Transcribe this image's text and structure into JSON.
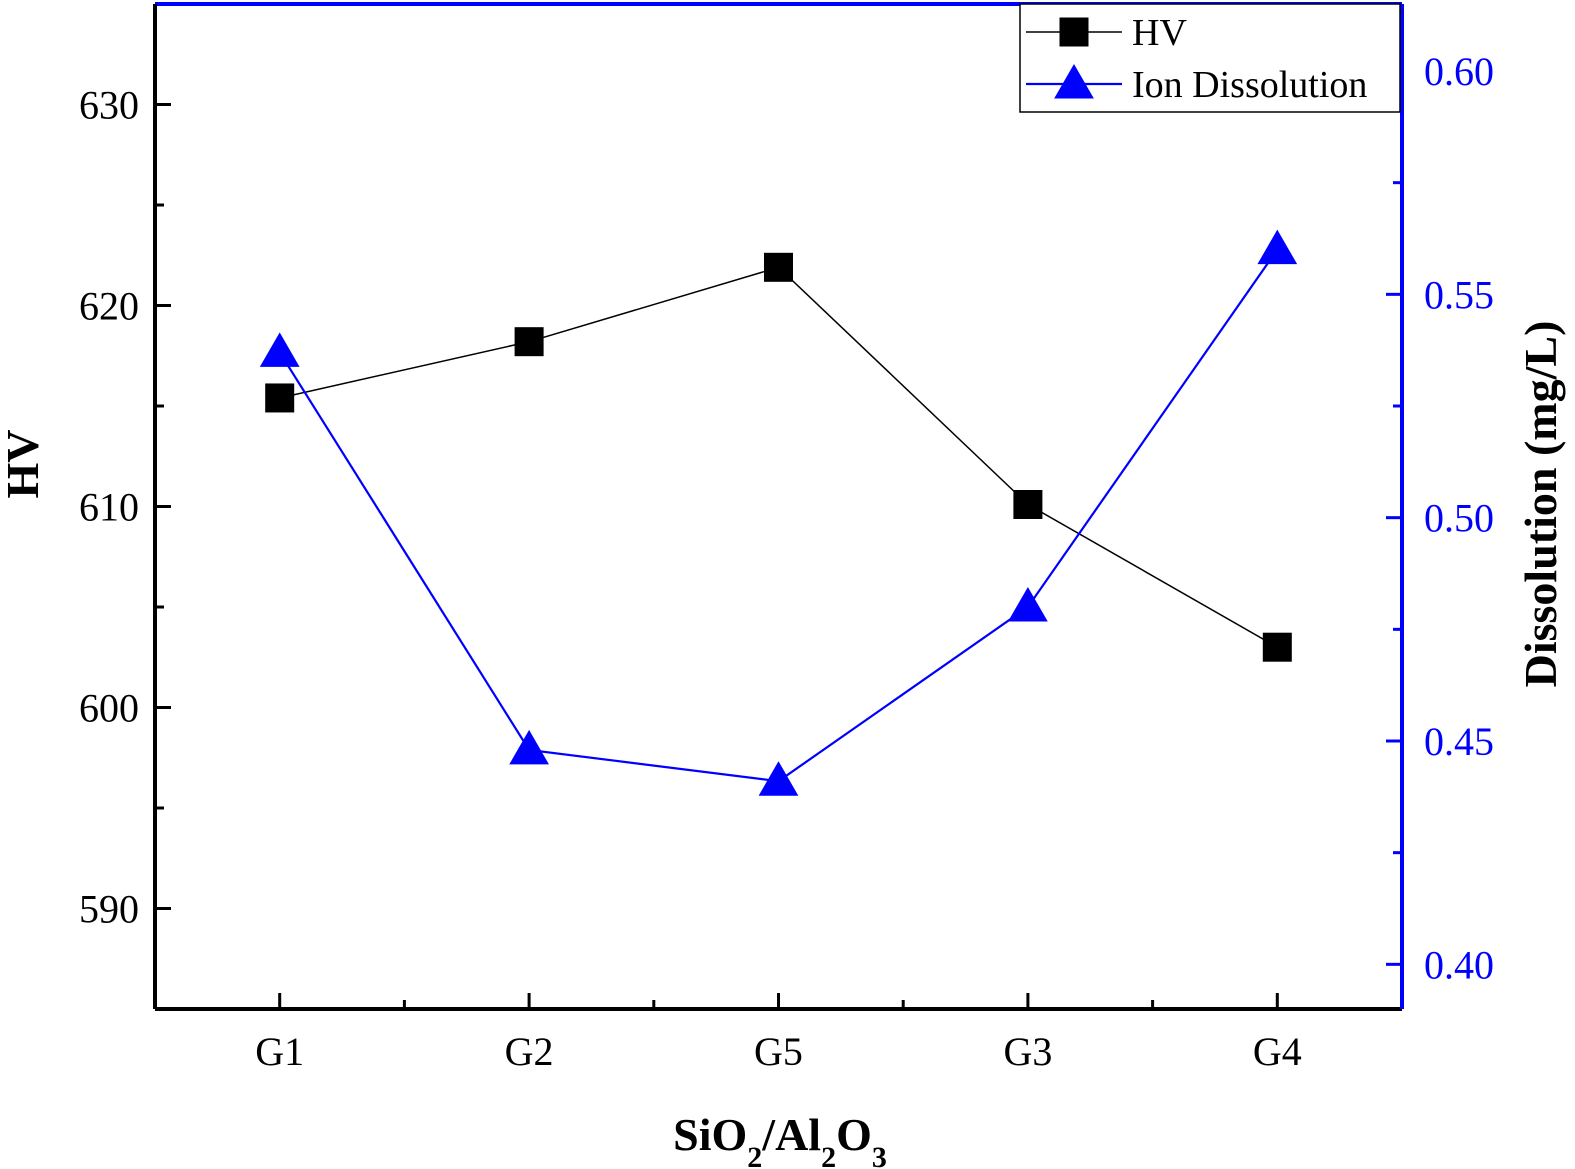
{
  "chart_data": {
    "type": "line",
    "categories": [
      "G1",
      "G2",
      "G5",
      "G3",
      "G4"
    ],
    "xlabel": "SiO2/Al2O3",
    "xlabel_parts": [
      {
        "text": "SiO",
        "sub": false
      },
      {
        "text": "2",
        "sub": true
      },
      {
        "text": "/Al",
        "sub": false
      },
      {
        "text": "2",
        "sub": true
      },
      {
        "text": "O",
        "sub": false
      },
      {
        "text": "3",
        "sub": true
      }
    ],
    "y_left": {
      "label": "HV",
      "range": [
        585,
        635
      ],
      "ticks": [
        590,
        600,
        610,
        620,
        630
      ],
      "tick_labels": [
        "590",
        "600",
        "610",
        "620",
        "630"
      ]
    },
    "y_right": {
      "label": "Dissolution (mg/L)",
      "range": [
        0.39,
        0.615
      ],
      "ticks": [
        0.4,
        0.45,
        0.5,
        0.55,
        0.6
      ],
      "tick_labels": [
        "0.40",
        "0.45",
        "0.50",
        "0.55",
        "0.60"
      ],
      "color": "#0000ff"
    },
    "series": [
      {
        "name": "HV",
        "axis": "left",
        "marker": "square",
        "color": "#000000",
        "values": [
          615.4,
          618.2,
          621.9,
          610.1,
          603.0
        ]
      },
      {
        "name": "Ion Dissolution",
        "axis": "right",
        "marker": "triangle",
        "color": "#0000ff",
        "values": [
          0.537,
          0.448,
          0.441,
          0.48,
          0.56
        ]
      }
    ],
    "legend_position": "top-right",
    "grid": false
  }
}
